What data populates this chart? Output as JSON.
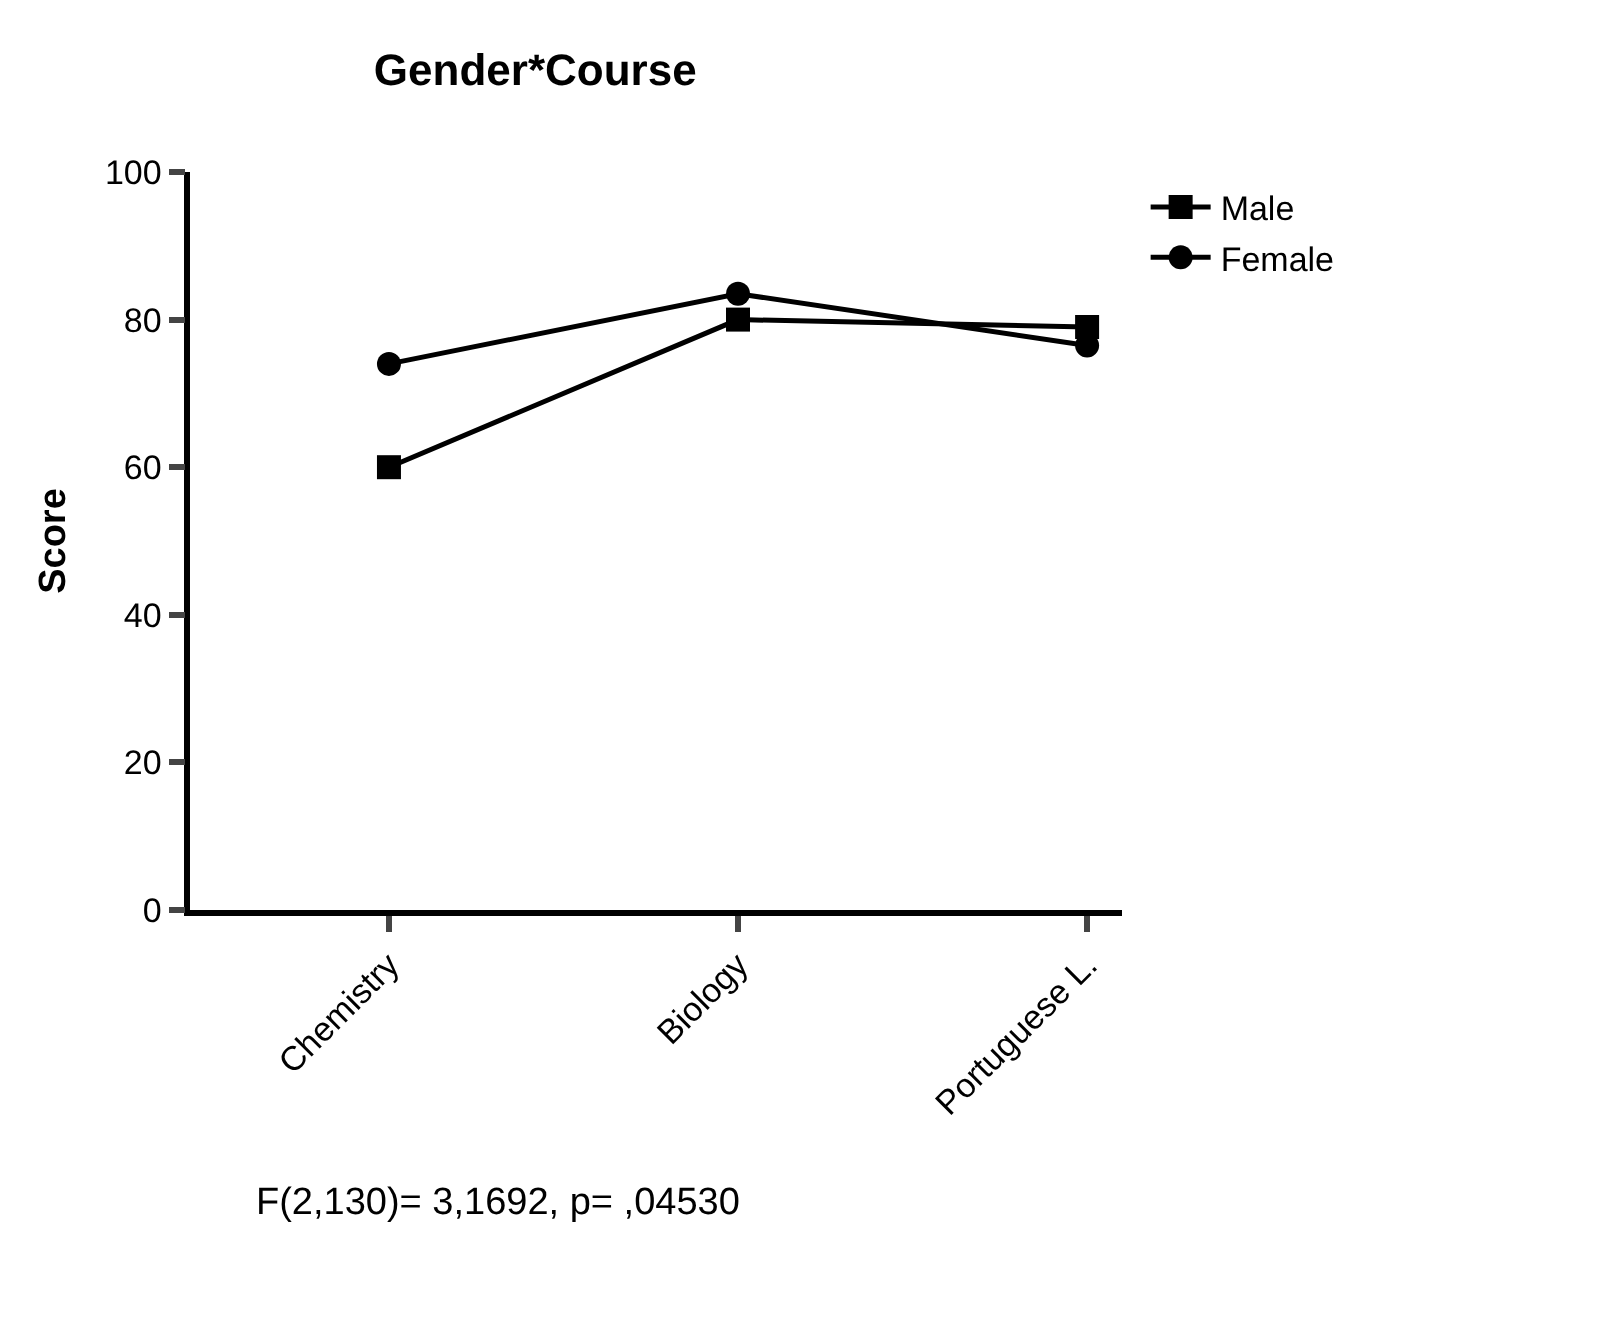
{
  "chart_data": {
    "type": "line",
    "title": "Gender*Course",
    "ylabel": "Score",
    "categories": [
      "Chemistry",
      "Biology",
      "Portuguese L."
    ],
    "series": [
      {
        "name": "Male",
        "color": "#000000",
        "marker": "square",
        "values": [
          60,
          80,
          79
        ]
      },
      {
        "name": "Female",
        "color": "#000000",
        "marker": "circle",
        "values": [
          74,
          83.5,
          76.5
        ]
      }
    ],
    "ylim": [
      0,
      100
    ],
    "yticks": [
      0,
      20,
      40,
      60,
      80,
      100
    ],
    "legend": "top right",
    "line_style": "solid",
    "annotations": [
      "F(2,130)= 3,1692, p= ,04530"
    ]
  }
}
